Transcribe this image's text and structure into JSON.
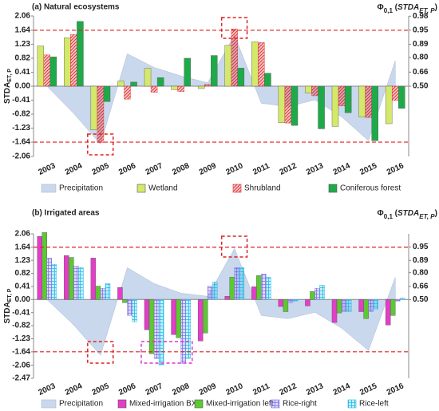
{
  "chart_data": [
    {
      "type": "bar",
      "title": "(a) Natural ecosystems",
      "y_label": [
        "STDA",
        "ET, P"
      ],
      "y2_label": [
        "Φ",
        "0,1",
        " (",
        "STDA",
        "ET, P",
        ")"
      ],
      "categories": [
        "2003",
        "2004",
        "2005",
        "2006",
        "2007",
        "2008",
        "2009",
        "2010",
        "2011",
        "2012",
        "2013",
        "2014",
        "2015",
        "2016"
      ],
      "series": [
        {
          "name": "Precipitation",
          "type": "area",
          "color": "#c9d8ec",
          "values": [
            0.0,
            -0.8,
            -1.7,
            0.95,
            0.55,
            0.3,
            0.1,
            1.5,
            -0.5,
            -0.6,
            -0.4,
            -0.9,
            -1.6,
            0.75
          ]
        },
        {
          "name": "Wetland",
          "color": "#d4e86a",
          "values": [
            1.18,
            1.42,
            -1.28,
            0.15,
            0.52,
            -0.1,
            -0.07,
            1.2,
            1.3,
            -1.07,
            -0.2,
            -1.18,
            -0.9,
            -1.1
          ]
        },
        {
          "name": "Shrubland",
          "color": "#e03030",
          "pattern": "diagonal",
          "values": [
            0.92,
            1.52,
            -1.65,
            -0.38,
            -0.18,
            -0.16,
            0.05,
            1.68,
            1.28,
            -1.08,
            -0.28,
            -0.58,
            -0.92,
            -0.42
          ]
        },
        {
          "name": "Coniferous forest",
          "color": "#1faa4a",
          "values": [
            0.86,
            1.9,
            -0.45,
            0.12,
            0.25,
            0.82,
            0.9,
            0.53,
            0.38,
            -1.15,
            -1.25,
            -0.78,
            -1.6,
            -0.65
          ]
        }
      ],
      "ylim": [
        -2.06,
        2.06
      ],
      "yticks": [
        -2.06,
        -1.64,
        -1.23,
        -0.82,
        -0.41,
        {
          "value": 0,
          "label": "0.00"
        },
        0.41,
        0.82,
        1.23,
        1.64,
        2.06
      ],
      "y2scale": "normal-probability",
      "y2ticks": [
        {
          "value": 0.5,
          "label": "0.50"
        },
        0.66,
        {
          "value": 0.8,
          "label": "0.80"
        },
        0.89,
        0.95,
        0.98
      ],
      "thresholds": [
        1.64,
        -1.64
      ],
      "threshold_color": "#e02020"
    },
    {
      "type": "bar",
      "title": "(b) Irrigated areas",
      "y_label": [
        "STDA",
        "ET, P"
      ],
      "y2_label": [
        "Φ",
        "0,1",
        " (",
        "STDA",
        "ET, P",
        ")"
      ],
      "categories": [
        "2003",
        "2004",
        "2005",
        "2006",
        "2007",
        "2008",
        "2009",
        "2010",
        "2011",
        "2012",
        "2013",
        "2014",
        "2015",
        "2016"
      ],
      "series": [
        {
          "name": "Precipitation",
          "type": "area",
          "color": "#c9d8ec",
          "values": [
            0.0,
            -0.8,
            -1.75,
            1.0,
            0.5,
            0.2,
            0.1,
            1.6,
            -0.5,
            -0.6,
            -0.4,
            -0.9,
            -1.6,
            0.7
          ]
        },
        {
          "name": "Mixed-irrigation BXII",
          "color": "#e23ec8",
          "values": [
            1.98,
            1.38,
            1.3,
            0.38,
            -0.95,
            -1.1,
            -1.3,
            0.1,
            0.4,
            -0.22,
            -0.2,
            -0.72,
            -0.38,
            -0.8
          ]
        },
        {
          "name": "Mixed-irrigation left",
          "color": "#5cc832",
          "values": [
            2.1,
            1.32,
            0.42,
            -0.1,
            -1.7,
            -1.2,
            -1.05,
            0.7,
            0.75,
            -0.38,
            0.25,
            -0.42,
            -0.6,
            -0.5
          ]
        },
        {
          "name": "Rice-right",
          "color": "#7b6ee8",
          "pattern": "grid",
          "values": [
            1.3,
            1.05,
            0.35,
            -0.5,
            -1.85,
            -2.0,
            0.42,
            1.0,
            0.8,
            -0.1,
            0.35,
            -0.38,
            -0.38,
            -0.05
          ]
        },
        {
          "name": "Rice-left",
          "color": "#22b8e8",
          "pattern": "grid",
          "values": [
            1.1,
            1.0,
            0.5,
            -0.7,
            -2.05,
            -1.85,
            0.55,
            1.0,
            0.7,
            -0.05,
            0.45,
            -0.38,
            -0.3,
            0.05
          ]
        }
      ],
      "ylim": [
        -2.47,
        2.06
      ],
      "yticks": [
        -2.47,
        -2.06,
        -1.64,
        -1.23,
        -0.82,
        -0.41,
        {
          "value": 0,
          "label": "0.00"
        },
        0.41,
        0.82,
        1.23,
        1.64,
        2.06
      ],
      "y2scale": "normal-probability",
      "y2ticks": [
        {
          "value": 0.5,
          "label": "0.50"
        },
        0.66,
        {
          "value": 0.8,
          "label": "0.80"
        },
        0.89,
        0.95
      ],
      "thresholds": [
        1.64,
        -1.64
      ],
      "threshold_color": "#e02020"
    }
  ]
}
